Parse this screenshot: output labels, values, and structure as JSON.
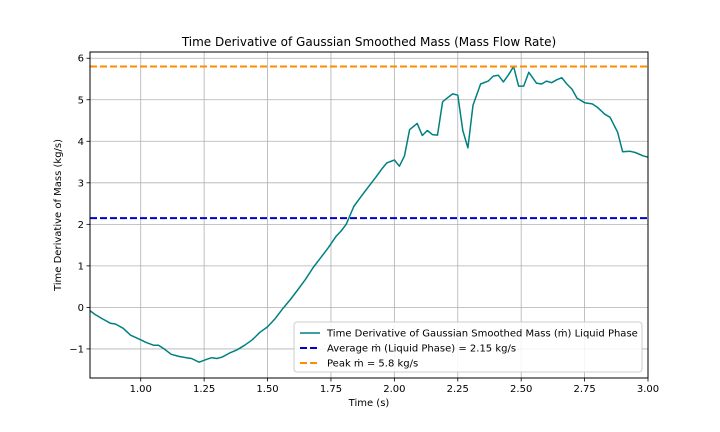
{
  "chart_data": {
    "type": "line",
    "title": "Time Derivative of Gaussian Smoothed Mass (Mass Flow Rate)",
    "xlabel": "Time (s)",
    "ylabel": "Time Derivative of Mass (kg/s)",
    "xlim": [
      0.8,
      3.0
    ],
    "ylim": [
      -1.7,
      6.15
    ],
    "x_ticks": [
      1.0,
      1.25,
      1.5,
      1.75,
      2.0,
      2.25,
      2.5,
      2.75,
      3.0
    ],
    "x_tick_labels": [
      "1.00",
      "1.25",
      "1.50",
      "1.75",
      "2.00",
      "2.25",
      "2.50",
      "2.75",
      "3.00"
    ],
    "y_ticks": [
      -1,
      0,
      1,
      2,
      3,
      4,
      5,
      6
    ],
    "y_tick_labels": [
      "−1",
      "0",
      "1",
      "2",
      "3",
      "4",
      "5",
      "6"
    ],
    "grid": true,
    "legend_position": "bottom-right",
    "series": [
      {
        "name": "Time Derivative of Gaussian Smoothed Mass (ṁ) Liquid Phase",
        "color": "#008080",
        "style": "solid",
        "x": [
          0.8,
          0.82,
          0.85,
          0.88,
          0.9,
          0.93,
          0.96,
          1.0,
          1.02,
          1.05,
          1.07,
          1.09,
          1.12,
          1.15,
          1.18,
          1.2,
          1.23,
          1.26,
          1.28,
          1.3,
          1.32,
          1.35,
          1.38,
          1.41,
          1.44,
          1.47,
          1.5,
          1.53,
          1.56,
          1.59,
          1.62,
          1.65,
          1.68,
          1.71,
          1.74,
          1.77,
          1.79,
          1.81,
          1.84,
          1.87,
          1.9,
          1.93,
          1.95,
          1.97,
          2.0,
          2.02,
          2.04,
          2.06,
          2.09,
          2.11,
          2.13,
          2.15,
          2.17,
          2.19,
          2.21,
          2.23,
          2.25,
          2.27,
          2.29,
          2.31,
          2.34,
          2.37,
          2.39,
          2.41,
          2.43,
          2.45,
          2.47,
          2.49,
          2.51,
          2.53,
          2.56,
          2.58,
          2.6,
          2.62,
          2.64,
          2.66,
          2.68,
          2.7,
          2.72,
          2.75,
          2.78,
          2.8,
          2.83,
          2.85,
          2.88,
          2.9,
          2.93,
          2.95,
          2.98,
          3.0
        ],
        "y": [
          -0.08,
          -0.17,
          -0.28,
          -0.38,
          -0.4,
          -0.5,
          -0.67,
          -0.78,
          -0.84,
          -0.91,
          -0.91,
          -0.99,
          -1.13,
          -1.18,
          -1.21,
          -1.23,
          -1.32,
          -1.25,
          -1.21,
          -1.23,
          -1.2,
          -1.1,
          -1.02,
          -0.91,
          -0.78,
          -0.6,
          -0.47,
          -0.27,
          -0.03,
          0.19,
          0.43,
          0.68,
          0.96,
          1.2,
          1.44,
          1.71,
          1.84,
          2.0,
          2.43,
          2.68,
          2.92,
          3.16,
          3.33,
          3.48,
          3.55,
          3.4,
          3.65,
          4.28,
          4.43,
          4.14,
          4.26,
          4.16,
          4.15,
          4.95,
          5.05,
          5.14,
          5.11,
          4.26,
          3.84,
          4.87,
          5.38,
          5.45,
          5.57,
          5.59,
          5.43,
          5.6,
          5.8,
          5.33,
          5.33,
          5.66,
          5.4,
          5.38,
          5.45,
          5.41,
          5.48,
          5.53,
          5.38,
          5.26,
          5.04,
          4.93,
          4.9,
          4.82,
          4.65,
          4.58,
          4.22,
          3.75,
          3.76,
          3.73,
          3.65,
          3.62
        ]
      },
      {
        "name": "Average ṁ (Liquid Phase) = 2.15 kg/s",
        "color": "#0000cd",
        "style": "dashed",
        "constant": 2.15
      },
      {
        "name": "Peak ṁ = 5.8 kg/s",
        "color": "#ff8c00",
        "style": "dashed",
        "constant": 5.8
      }
    ]
  }
}
